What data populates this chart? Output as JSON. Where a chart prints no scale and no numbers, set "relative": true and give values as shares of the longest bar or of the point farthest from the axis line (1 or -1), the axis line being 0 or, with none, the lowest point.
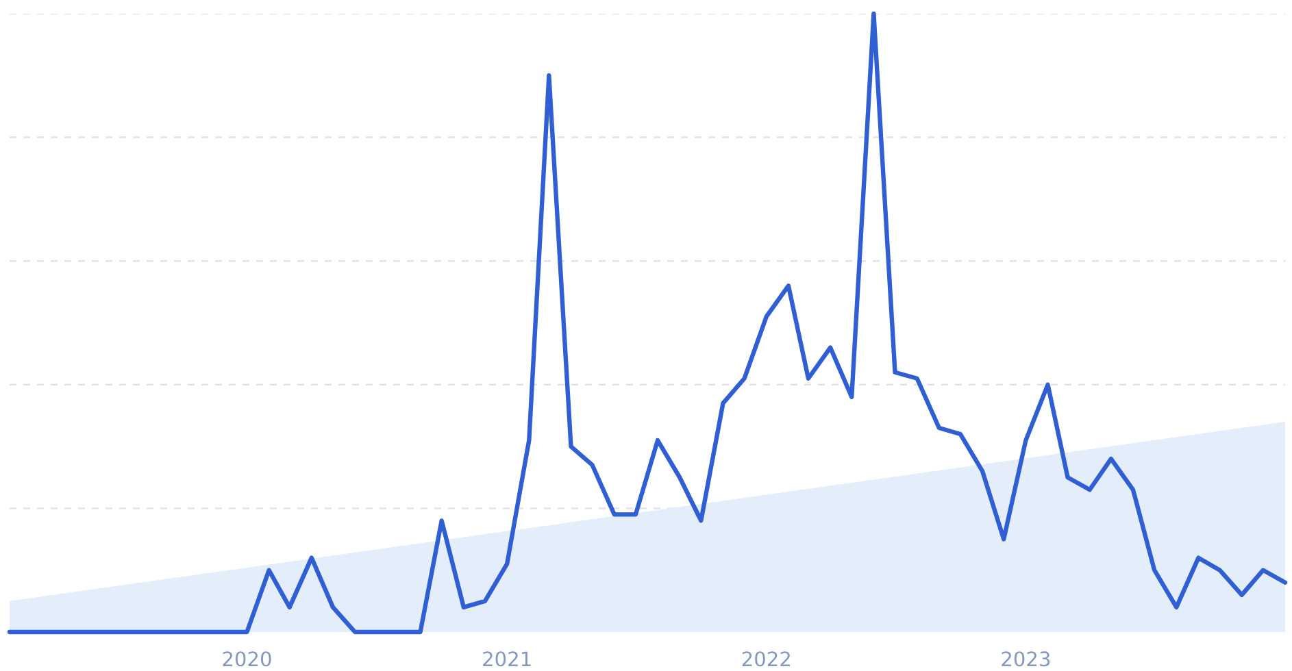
{
  "chart_data": {
    "type": "line",
    "relative": true,
    "grid": "y",
    "tick_labels": "x",
    "x": [
      "2019-02",
      "2019-03",
      "2019-04",
      "2019-05",
      "2019-06",
      "2019-07",
      "2019-08",
      "2019-09",
      "2019-10",
      "2019-11",
      "2019-12",
      "2020-01",
      "2020-02",
      "2020-03",
      "2020-04",
      "2020-05",
      "2020-06",
      "2020-07",
      "2020-08",
      "2020-09",
      "2020-10",
      "2020-11",
      "2020-12",
      "2021-01",
      "2021-02",
      "2021-03",
      "2021-04",
      "2021-05",
      "2021-06",
      "2021-07",
      "2021-08",
      "2021-09",
      "2021-10",
      "2021-11",
      "2021-12",
      "2022-01",
      "2022-02",
      "2022-03",
      "2022-04",
      "2022-05",
      "2022-06",
      "2022-07",
      "2022-08",
      "2022-09",
      "2022-10",
      "2022-11",
      "2022-12",
      "2023-01",
      "2023-02",
      "2023-03",
      "2023-04",
      "2023-05",
      "2023-06",
      "2023-07",
      "2023-08",
      "2023-09",
      "2023-10",
      "2023-11",
      "2023-12",
      "2024-01"
    ],
    "xlim": [
      "2019-02",
      "2024-01"
    ],
    "xticks": [
      "2020",
      "2021",
      "2022",
      "2023"
    ],
    "series": [
      {
        "color": "#2f5fd2",
        "values": [
          0,
          0,
          0,
          0,
          0,
          0,
          0,
          0,
          0,
          0,
          0,
          0,
          0.1,
          0.04,
          0.12,
          0.04,
          0,
          0,
          0,
          0,
          0.18,
          0.04,
          0.05,
          0.11,
          0.31,
          0.9,
          0.3,
          0.27,
          0.19,
          0.19,
          0.31,
          0.25,
          0.18,
          0.37,
          0.41,
          0.51,
          0.56,
          0.41,
          0.46,
          0.38,
          1,
          0.42,
          0.41,
          0.33,
          0.32,
          0.26,
          0.15,
          0.31,
          0.4,
          0.25,
          0.23,
          0.28,
          0.23,
          0.1,
          0.04,
          0.12,
          0.1,
          0.06,
          0.1,
          0.08
        ]
      },
      {
        "type": "area",
        "color": "#e4eefb",
        "x": [
          "2019-02",
          "2024-01"
        ],
        "values": [
          0.05,
          0.34
        ]
      }
    ]
  }
}
